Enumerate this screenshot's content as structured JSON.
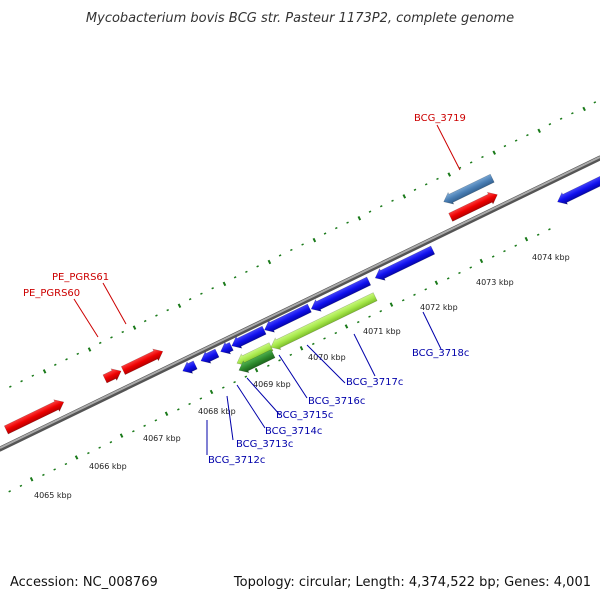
{
  "title": "Mycobacterium bovis BCG str. Pasteur 1173P2, complete genome",
  "footer": {
    "accession": "Accession: NC_008769",
    "summary": "Topology: circular; Length: 4,374,522 bp; Genes: 4,001"
  },
  "colors": {
    "red_label": "#cc0000",
    "blue_label": "#0000aa",
    "red_gene": "#ee0000",
    "blue_gene": "#1010ee",
    "steel_gene": "#4a7fb5",
    "green_gene": "#a6e84a",
    "dark_green_gene": "#2e8b2e",
    "tick": "#1a7a1a",
    "backbone": "#888888"
  },
  "scale_labels": [
    "4065 kbp",
    "4066 kbp",
    "4067 kbp",
    "4068 kbp",
    "4069 kbp",
    "4070 kbp",
    "4071 kbp",
    "4072 kbp",
    "4073 kbp",
    "4074 kbp"
  ],
  "gene_labels": {
    "forward": [
      "PE_PGRS60",
      "PE_PGRS61",
      "BCG_3719"
    ],
    "reverse": [
      "BCG_3712c",
      "BCG_3713c",
      "BCG_3714c",
      "BCG_3715c",
      "BCG_3716c",
      "BCG_3717c",
      "BCG_3718c"
    ]
  }
}
